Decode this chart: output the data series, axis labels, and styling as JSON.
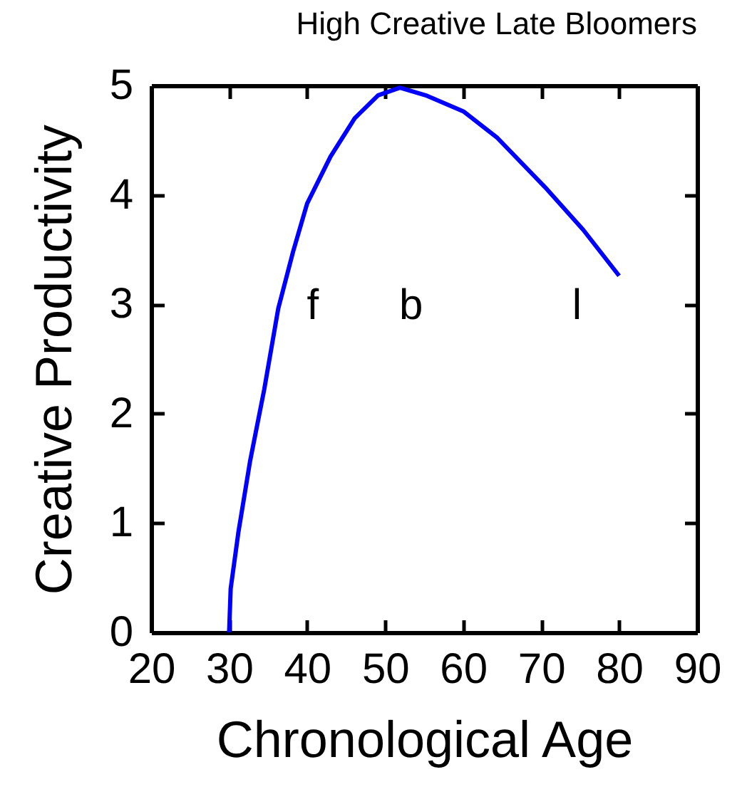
{
  "chart_data": {
    "type": "line",
    "title": "High Creative Late Bloomers",
    "xlabel": "Chronological Age",
    "ylabel": "Creative Productivity",
    "x": [
      30,
      30.2,
      31.2,
      32.7,
      34.5,
      36.3,
      38.2,
      40,
      43,
      46.1,
      49.1,
      51.9,
      55.2,
      60.1,
      64.4,
      70.5,
      75.4,
      80
    ],
    "series": [
      {
        "color": "#0000ff",
        "values": [
          0,
          0.4,
          0.92,
          1.57,
          2.22,
          2.96,
          3.48,
          3.92,
          4.35,
          4.7,
          4.91,
          4.98,
          4.91,
          4.76,
          4.52,
          4.07,
          3.68,
          3.26
        ]
      }
    ],
    "xlim": [
      20,
      90
    ],
    "xticks": [
      20,
      30,
      40,
      50,
      60,
      70,
      80,
      90
    ],
    "ylim": [
      0,
      5
    ],
    "yticks": [
      0,
      1,
      2,
      3,
      4,
      5
    ],
    "annotations": [
      "f",
      "b",
      "l"
    ],
    "grid": false,
    "marker": "none",
    "line_style": "solid"
  }
}
